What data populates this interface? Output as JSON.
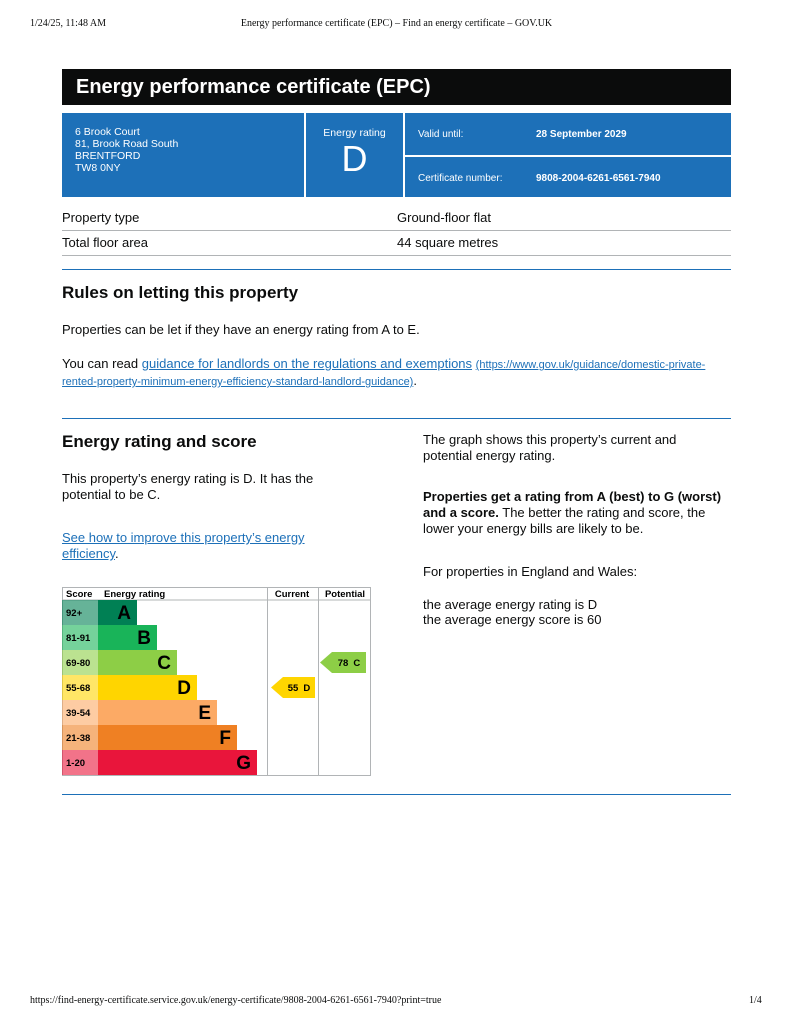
{
  "browser_header": {
    "datetime": "1/24/25, 11:48 AM",
    "page_title": "Energy performance certificate (EPC) – Find an energy certificate – GOV.UK"
  },
  "header": {
    "title": "Energy performance certificate (EPC)"
  },
  "address": [
    "6 Brook Court",
    "81, Brook Road South",
    "BRENTFORD",
    "TW8 0NY"
  ],
  "energy_rating": {
    "label": "Energy rating",
    "value": "D"
  },
  "valid_until": {
    "label": "Valid until:",
    "value": "28 September 2029"
  },
  "certificate_number": {
    "label": "Certificate number:",
    "value": "9808-2004-6261-6561-7940"
  },
  "property_details": [
    [
      "Property type",
      "Ground-floor flat"
    ],
    [
      "Total floor area",
      "44 square metres"
    ]
  ],
  "rules": {
    "heading": "Rules on letting this property",
    "paragraph": "Properties can be let if they have an energy rating from A to E.",
    "read_prefix": "You can read ",
    "link_text": "guidance for landlords on the regulations and exemptions",
    "link_url": "(https://www.gov.uk/guidance/domestic-private-rented-property-minimum-energy-efficiency-standard-landlord-guidance)",
    "read_suffix": "."
  },
  "score": {
    "heading": "Energy rating and score",
    "paragraph": "This property’s energy rating is D. It has the potential to be C.",
    "link_text": "See how to improve this property’s energy efficiency",
    "link_suffix": "."
  },
  "graph": {
    "headers": [
      "Score",
      "Energy rating",
      "Current",
      "Potential"
    ],
    "bands": [
      {
        "range": "92+",
        "letter": "A",
        "color": "#008054"
      },
      {
        "range": "81-91",
        "letter": "B",
        "color": "#19b459"
      },
      {
        "range": "69-80",
        "letter": "C",
        "color": "#8dce46"
      },
      {
        "range": "55-68",
        "letter": "D",
        "color": "#ffd500"
      },
      {
        "range": "39-54",
        "letter": "E",
        "color": "#fcaa65"
      },
      {
        "range": "21-38",
        "letter": "F",
        "color": "#ef8023"
      },
      {
        "range": "1-20",
        "letter": "G",
        "color": "#e9153b"
      }
    ],
    "current": {
      "score": 55,
      "rating": "D"
    },
    "potential": {
      "score": 78,
      "rating": "C"
    }
  },
  "explanation": {
    "graph_note": "The graph shows this property’s current and potential energy rating.",
    "bold": "Properties get a rating from A (best) to G (worst) and a score.",
    "rest": " The better the rating and score, the lower your energy bills are likely to be.",
    "region": "For properties in England and Wales:",
    "avg_rating": "the average energy rating is D",
    "avg_score": "the average energy score is 60"
  },
  "footer": {
    "url": "https://find-energy-certificate.service.gov.uk/energy-certificate/9808-2004-6261-6561-7940?print=true",
    "page": "1/4"
  }
}
